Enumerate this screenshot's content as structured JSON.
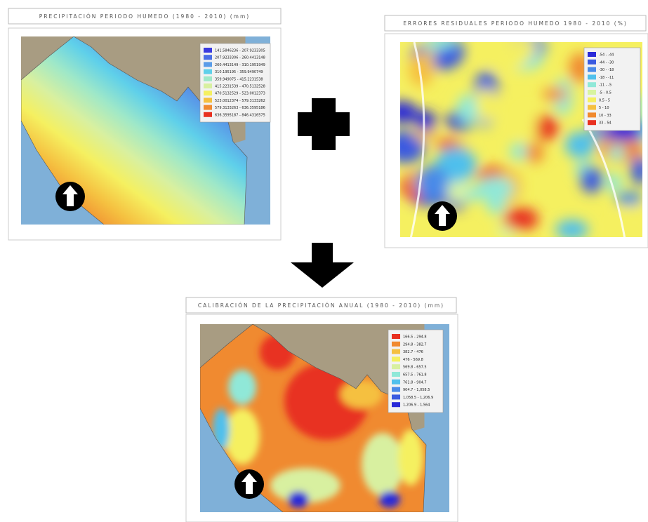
{
  "panels": [
    {
      "title": "PRECIPITACIÓN PERIODO HUMEDO (1980 - 2010) (mm)",
      "legend": [
        {
          "label": "141.5846236 - 207.9233305",
          "color": "#3a3adf"
        },
        {
          "label": "207.9233306 - 260.4413148",
          "color": "#4a6ee6"
        },
        {
          "label": "260.4413149 - 310.1951949",
          "color": "#5a9ce8"
        },
        {
          "label": "310.195195 - 359.9490749",
          "color": "#5fd0ea"
        },
        {
          "label": "359.949075 - 415.2231538",
          "color": "#9fe8c8"
        },
        {
          "label": "415.2231539 - 470.5132528",
          "color": "#d8f0a0"
        },
        {
          "label": "470.5132529 - 523.0012373",
          "color": "#f5f060"
        },
        {
          "label": "523.0012374 - 579.3133262",
          "color": "#f5c040"
        },
        {
          "label": "579.3133263 - 636.3595186",
          "color": "#f08a30"
        },
        {
          "label": "636.3595187 - 846.4316575",
          "color": "#e83020"
        }
      ]
    },
    {
      "title": "ERRORES RESIDUALES PERIODO HUMEDO 1980 - 2010 (%)",
      "legend": [
        {
          "label": "-54 - -44",
          "color": "#2a2ad8"
        },
        {
          "label": "-44 - -30",
          "color": "#3a5ae0"
        },
        {
          "label": "-30 - -18",
          "color": "#4a8ae8"
        },
        {
          "label": "-18 - -11",
          "color": "#50c0ec"
        },
        {
          "label": "-11 - -5",
          "color": "#90e8d8"
        },
        {
          "label": "-5 - 0.5",
          "color": "#d8f4a0"
        },
        {
          "label": "0.5 - 5",
          "color": "#f5f060"
        },
        {
          "label": "5 - 10",
          "color": "#f5c040"
        },
        {
          "label": "10 - 33",
          "color": "#f08a30"
        },
        {
          "label": "33 - 54",
          "color": "#e83020"
        }
      ]
    },
    {
      "title": "CALIBRACIÓN DE LA PRECIPITACIÓN ANUAL (1980 - 2010) (mm)",
      "legend": [
        {
          "label": "166.5 - 294.8",
          "color": "#e83020"
        },
        {
          "label": "294.8 - 382.7",
          "color": "#f08a30"
        },
        {
          "label": "382.7 - 476",
          "color": "#f5c040"
        },
        {
          "label": "476 - 569.8",
          "color": "#f5f060"
        },
        {
          "label": "569.8 - 657.5",
          "color": "#d8f0a0"
        },
        {
          "label": "657.5 - 761.8",
          "color": "#90e8d8"
        },
        {
          "label": "761.8 - 904.7",
          "color": "#50c0ec"
        },
        {
          "label": "904.7 - 1,058.5",
          "color": "#4a8ae8"
        },
        {
          "label": "1,058.5 - 1,206.9",
          "color": "#3a5ae0"
        },
        {
          "label": "1,206.9 - 1,564",
          "color": "#2a2ad8"
        }
      ]
    }
  ]
}
